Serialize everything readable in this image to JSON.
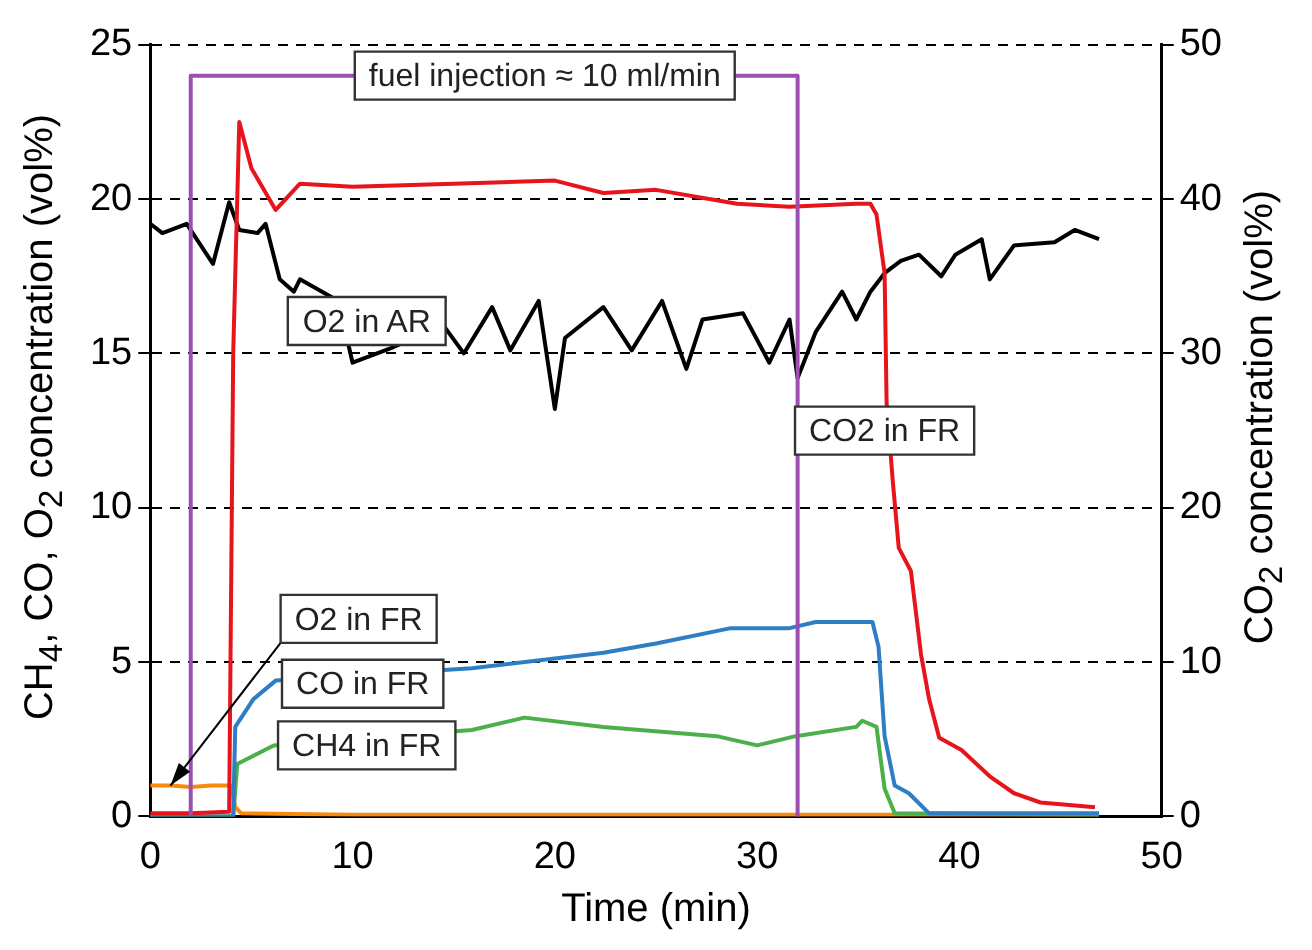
{
  "chart_data": {
    "type": "line",
    "xlabel": "Time (min)",
    "ylabel": "CH$_{4}$, CO, O$_{2}$ concentration (vol%)",
    "y2label": "CO$_{2}$ concentration (vol%)",
    "xlim": [
      0,
      50
    ],
    "xticks": [
      0,
      10,
      20,
      30,
      40,
      50
    ],
    "ylim": [
      0,
      25
    ],
    "yticks": [
      0,
      5,
      10,
      15,
      20,
      25
    ],
    "y2lim": [
      0,
      50
    ],
    "y2ticks": [
      0,
      10,
      20,
      30,
      40,
      50
    ],
    "grid": "y",
    "legend": false,
    "marker": "none",
    "line_style": "solid",
    "series": [
      {
        "name": "fuel injection ≈ 10 ml/min",
        "color": "#9b4fb0",
        "x": [
          2,
          2,
          32,
          32
        ],
        "values": [
          0,
          24,
          24,
          0
        ]
      },
      {
        "name": "CO2 in FR",
        "color": "#e8141c",
        "axis": "y2",
        "x": [
          0,
          2,
          3.9,
          4.1,
          4.4,
          5,
          6.2,
          7.4,
          10,
          15,
          20,
          22.4,
          25,
          29,
          31.6,
          34.9,
          35.6,
          35.9,
          36.3,
          36.4,
          36.5,
          36.7,
          37.0,
          37.6,
          38.1,
          38.5,
          39.0,
          40.1,
          41.5,
          42.7,
          44,
          46.7
        ],
        "values": [
          0.2,
          0.2,
          0.3,
          30,
          45,
          42,
          39.3,
          41,
          40.8,
          41,
          41.2,
          40.4,
          40.6,
          39.7,
          39.5,
          39.7,
          39.7,
          39,
          35.2,
          26.8,
          null,
          21.8,
          17.4,
          15.9,
          10.5,
          7.6,
          5.1,
          4.3,
          2.6,
          1.5,
          0.9,
          0.6
        ]
      },
      {
        "name": "O2 in AR",
        "color": "#000000",
        "x": [
          0,
          0.6,
          1.8,
          3.1,
          3.9,
          4.4,
          5.3,
          5.7,
          6.4,
          7.1,
          7.4,
          7.7,
          9.3,
          10,
          11,
          12,
          13,
          14.5,
          15.5,
          16.9,
          17.8,
          19.2,
          20,
          20.5,
          22.4,
          23.8,
          25.3,
          26.5,
          27.3,
          29.3,
          30.6,
          31.6,
          32,
          32.9,
          34.2,
          34.9,
          35.6,
          36.3,
          37.1,
          38,
          39.1,
          39.8,
          41.1,
          41.5,
          42.7,
          44.7,
          45.7,
          46.9
        ],
        "values": [
          19.2,
          18.9,
          19.2,
          17.9,
          19.9,
          19.0,
          18.9,
          19.2,
          17.4,
          17.0,
          17.4,
          null,
          16.7,
          14.7,
          null,
          15.2,
          null,
          15.9,
          15.0,
          16.5,
          15.1,
          16.7,
          13.2,
          15.5,
          16.5,
          15.1,
          16.7,
          14.5,
          16.1,
          16.3,
          14.7,
          16.1,
          14.2,
          15.7,
          17.0,
          16.1,
          17.0,
          17.6,
          18.0,
          18.2,
          17.5,
          18.2,
          18.7,
          17.4,
          18.5,
          18.6,
          19.0,
          18.7
        ]
      },
      {
        "name": "CO in FR",
        "color": "#2f7dc4",
        "x": [
          0,
          4.1,
          4.2,
          5.1,
          6.2,
          10,
          15.9,
          22.4,
          25,
          28.7,
          31.6,
          32.9,
          35.7,
          36,
          36.3,
          36.8,
          37.5,
          38.5,
          46.9
        ],
        "values": [
          0,
          0,
          2.9,
          3.8,
          4.4,
          null,
          4.8,
          5.3,
          5.6,
          6.1,
          6.1,
          6.3,
          6.3,
          5.5,
          2.6,
          1.0,
          0.75,
          0.1,
          0.1
        ]
      },
      {
        "name": "CH4 in FR",
        "color": "#4cb04a",
        "x": [
          0,
          4.1,
          4.3,
          6.1,
          7.5,
          13.3,
          15.9,
          18.5,
          22.4,
          28,
          30,
          31.9,
          34.9,
          35.2,
          35.9,
          36.3,
          36.8,
          46.9
        ],
        "values": [
          0,
          0,
          1.7,
          2.3,
          null,
          null,
          2.8,
          3.2,
          2.9,
          2.6,
          2.3,
          2.6,
          2.9,
          3.1,
          2.9,
          0.9,
          0.1,
          0.05
        ]
      },
      {
        "name": "O2 in FR",
        "color": "#f7890f",
        "x": [
          0,
          1,
          2,
          3,
          4,
          4.2,
          4.5,
          10,
          20,
          30,
          40,
          46.9
        ],
        "values": [
          1.0,
          1.0,
          0.95,
          1.0,
          1.0,
          0.3,
          0.1,
          0.05,
          0.05,
          0.05,
          0.05,
          0.05
        ]
      }
    ]
  }
}
